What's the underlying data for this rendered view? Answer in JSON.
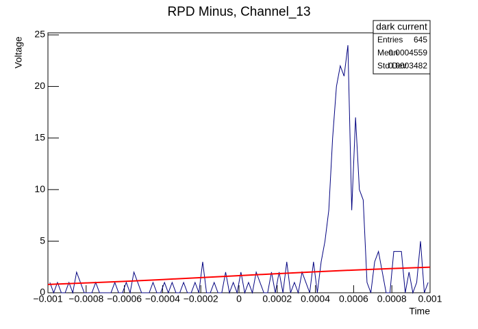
{
  "chart_data": {
    "type": "line",
    "title": "RPD Minus, Channel_13",
    "x_label": "Time",
    "y_label": "Voltage",
    "x": [
      -0.00099,
      -0.00097,
      -0.00095,
      -0.00093,
      -0.00091,
      -0.00089,
      -0.00087,
      -0.00085,
      -0.00083,
      -0.00081,
      -0.00079,
      -0.00077,
      -0.00075,
      -0.00073,
      -0.00071,
      -0.00069,
      -0.00067,
      -0.00065,
      -0.00063,
      -0.00061,
      -0.00059,
      -0.00057,
      -0.00055,
      -0.00053,
      -0.00051,
      -0.00049,
      -0.00047,
      -0.00045,
      -0.00043,
      -0.00041,
      -0.00039,
      -0.00037,
      -0.00035,
      -0.00033,
      -0.00031,
      -0.00029,
      -0.00027,
      -0.00025,
      -0.00023,
      -0.00021,
      -0.00019,
      -0.00017,
      -0.00015,
      -0.00013,
      -0.00011,
      -9e-05,
      -7e-05,
      -5e-05,
      -3e-05,
      -1e-05,
      1e-05,
      3e-05,
      5e-05,
      7e-05,
      9e-05,
      0.00011,
      0.00013,
      0.00015,
      0.00017,
      0.00019,
      0.00021,
      0.00023,
      0.00025,
      0.00027,
      0.00029,
      0.00031,
      0.00033,
      0.00035,
      0.00037,
      0.00039,
      0.00041,
      0.00043,
      0.00045,
      0.00047,
      0.00049,
      0.00051,
      0.00053,
      0.00055,
      0.00057,
      0.00059,
      0.00061,
      0.00063,
      0.00065,
      0.00067,
      0.00069,
      0.00071,
      0.00073,
      0.00075,
      0.00077,
      0.00079,
      0.00081,
      0.00083,
      0.00085,
      0.00087,
      0.00089,
      0.00091,
      0.00093,
      0.00095,
      0.00097,
      0.00099
    ],
    "series": [
      {
        "name": "dark current",
        "color": "#00007f",
        "values": [
          1,
          0,
          1,
          0,
          0,
          1,
          0,
          2,
          1,
          0,
          0,
          0,
          1,
          0,
          0,
          0,
          0,
          1,
          0,
          0,
          1,
          0,
          2,
          1,
          0,
          0,
          0,
          1,
          0,
          0,
          1,
          0,
          1,
          0,
          0,
          1,
          0,
          0,
          1,
          0,
          3,
          0,
          0,
          1,
          0,
          0,
          2,
          0,
          1,
          0,
          2,
          0,
          1,
          0,
          2,
          1,
          0,
          0,
          2,
          0,
          2,
          0,
          3,
          0,
          1,
          0,
          2,
          1,
          0,
          3,
          0,
          3,
          5,
          8,
          15,
          20,
          22,
          21,
          24,
          8,
          17,
          10,
          9,
          1,
          0,
          3,
          4,
          2,
          0,
          0,
          4,
          4,
          4,
          0,
          2,
          0,
          1,
          5,
          0,
          1
        ]
      },
      {
        "color": "#ff0000",
        "x": [
          -0.001,
          -0.0008,
          -0.0006,
          -0.0004,
          -0.0002,
          0,
          0.0002,
          0.0004,
          0.0006,
          0.0008,
          0.001
        ],
        "values": [
          0.8,
          0.95,
          1.1,
          1.28,
          1.47,
          1.66,
          1.85,
          2.03,
          2.2,
          2.35,
          2.48
        ]
      }
    ],
    "xlim": [
      -0.001,
      0.001
    ],
    "xticks": [
      {
        "value": -0.001,
        "label": "−0.001"
      },
      {
        "value": -0.0008,
        "label": "−0.0008"
      },
      {
        "value": -0.0006,
        "label": "−0.0006"
      },
      {
        "value": -0.0004,
        "label": "−0.0004"
      },
      {
        "value": -0.0002,
        "label": "−0.0002"
      },
      0,
      0.0002,
      0.0004,
      0.0006,
      0.0008,
      0.001
    ],
    "ylim": [
      0,
      25.2
    ],
    "yticks": [
      0,
      5,
      10,
      15,
      20,
      25
    ],
    "stats": [
      [
        "Entries",
        645
      ],
      [
        "Mean",
        0.0004559
      ],
      [
        "Std Dev",
        0.0003482
      ]
    ]
  }
}
